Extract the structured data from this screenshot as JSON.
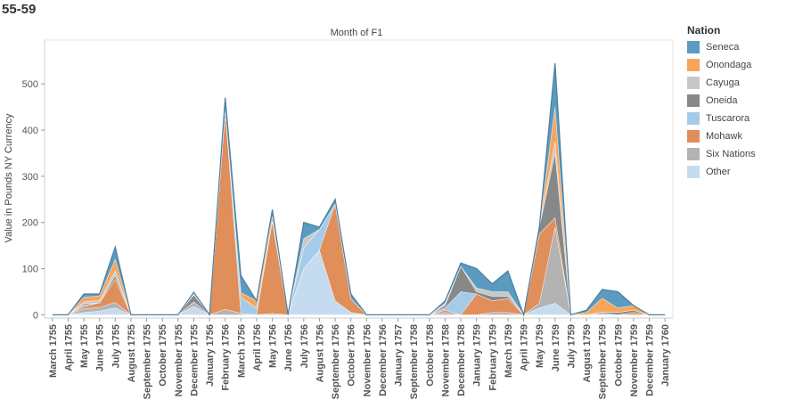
{
  "page_title": "55-59",
  "chart_data": {
    "type": "area",
    "stacked": true,
    "title": "Month of F1",
    "xlabel": "",
    "ylabel": "Value in Pounds NY Currency",
    "ylim": [
      -7,
      595
    ],
    "yticks": [
      0,
      100,
      200,
      300,
      400,
      500
    ],
    "legend_title": "Nation",
    "x": [
      "March 1755",
      "April 1755",
      "May 1755",
      "June 1755",
      "July 1755",
      "August 1755",
      "September 1755",
      "October 1755",
      "November 1755",
      "December 1755",
      "January 1756",
      "February 1756",
      "March 1756",
      "April 1756",
      "May 1756",
      "June 1756",
      "July 1756",
      "August 1756",
      "September 1756",
      "October 1756",
      "November 1756",
      "December 1756",
      "January 1757",
      "September 1758",
      "October 1758",
      "November 1758",
      "December 1758",
      "January 1759",
      "February 1759",
      "March 1759",
      "April 1759",
      "May 1759",
      "June 1759",
      "July 1759",
      "August 1759",
      "September 1759",
      "October 1759",
      "November 1759",
      "December 1759",
      "January 1760"
    ],
    "series": [
      {
        "name": "Other",
        "color": "#c5dcf0",
        "values": [
          0,
          0,
          5,
          8,
          15,
          0,
          0,
          0,
          0,
          18,
          0,
          0,
          0,
          0,
          0,
          0,
          100,
          140,
          30,
          5,
          0,
          0,
          0,
          0,
          0,
          0,
          0,
          0,
          0,
          0,
          0,
          15,
          25,
          0,
          0,
          0,
          0,
          0,
          0,
          0
        ]
      },
      {
        "name": "Six Nations",
        "color": "#b3b3b3",
        "values": [
          0,
          0,
          8,
          8,
          12,
          0,
          0,
          0,
          0,
          10,
          0,
          12,
          3,
          0,
          3,
          0,
          0,
          0,
          0,
          0,
          0,
          0,
          0,
          0,
          0,
          5,
          0,
          0,
          5,
          5,
          0,
          10,
          165,
          0,
          0,
          3,
          0,
          0,
          0,
          0
        ]
      },
      {
        "name": "Mohawk",
        "color": "#e08e5a",
        "values": [
          0,
          0,
          5,
          10,
          50,
          0,
          0,
          0,
          0,
          0,
          0,
          430,
          0,
          0,
          200,
          0,
          0,
          0,
          210,
          30,
          0,
          0,
          0,
          0,
          0,
          5,
          0,
          45,
          25,
          30,
          0,
          150,
          20,
          0,
          0,
          0,
          0,
          5,
          0,
          0
        ]
      },
      {
        "name": "Tuscarora",
        "color": "#a6cbe8",
        "values": [
          0,
          0,
          3,
          0,
          0,
          0,
          0,
          0,
          0,
          0,
          0,
          0,
          35,
          15,
          0,
          0,
          45,
          45,
          0,
          0,
          0,
          0,
          0,
          0,
          0,
          5,
          50,
          0,
          0,
          0,
          0,
          0,
          0,
          0,
          0,
          0,
          0,
          0,
          0,
          0
        ]
      },
      {
        "name": "Oneida",
        "color": "#888888",
        "values": [
          0,
          0,
          3,
          0,
          8,
          0,
          0,
          0,
          0,
          15,
          0,
          0,
          0,
          0,
          0,
          0,
          0,
          0,
          0,
          0,
          0,
          0,
          0,
          0,
          0,
          5,
          55,
          5,
          10,
          5,
          0,
          15,
          140,
          0,
          0,
          3,
          5,
          5,
          0,
          0
        ]
      },
      {
        "name": "Cayuga",
        "color": "#c7c7c7",
        "values": [
          0,
          0,
          4,
          5,
          10,
          0,
          0,
          0,
          0,
          3,
          0,
          0,
          0,
          0,
          0,
          0,
          20,
          0,
          0,
          0,
          0,
          0,
          0,
          0,
          0,
          5,
          0,
          8,
          10,
          10,
          0,
          0,
          25,
          0,
          0,
          0,
          0,
          0,
          0,
          0
        ]
      },
      {
        "name": "Onondaga",
        "color": "#f8a55c",
        "values": [
          0,
          0,
          10,
          10,
          25,
          0,
          0,
          0,
          0,
          0,
          0,
          0,
          10,
          15,
          10,
          0,
          0,
          0,
          0,
          0,
          0,
          0,
          0,
          0,
          0,
          0,
          0,
          0,
          0,
          0,
          0,
          0,
          75,
          0,
          5,
          30,
          10,
          10,
          0,
          0
        ]
      },
      {
        "name": "Seneca",
        "color": "#5b9bc0",
        "values": [
          0,
          0,
          7,
          4,
          27,
          0,
          0,
          0,
          0,
          3,
          0,
          28,
          37,
          0,
          15,
          0,
          35,
          5,
          10,
          10,
          0,
          0,
          0,
          0,
          0,
          5,
          7,
          42,
          17,
          45,
          0,
          0,
          95,
          0,
          5,
          19,
          35,
          0,
          0,
          0
        ]
      }
    ]
  }
}
